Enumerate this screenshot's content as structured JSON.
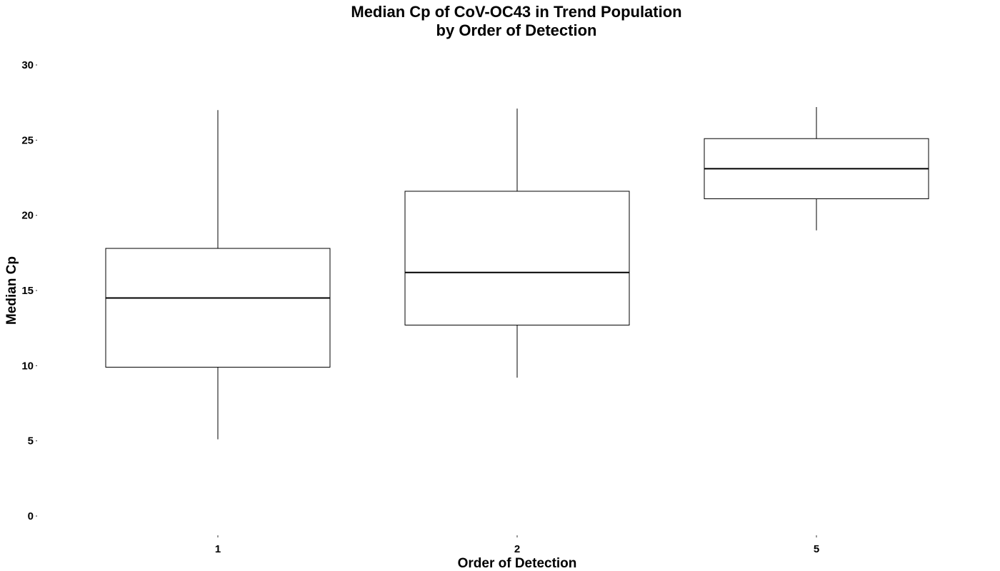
{
  "chart_data": {
    "type": "boxplot",
    "title": [
      "Median Cp of CoV-OC43 in Trend Population",
      "by Order of Detection"
    ],
    "xlabel": "Order of Detection",
    "ylabel": "Median Cp",
    "ylim": [
      0,
      30
    ],
    "yticks": [
      0,
      5,
      10,
      15,
      20,
      25,
      30
    ],
    "categories": [
      "1",
      "2",
      "5"
    ],
    "boxes": [
      {
        "category": "1",
        "whisker_low": 5.1,
        "q1": 9.9,
        "median": 14.5,
        "q3": 17.8,
        "whisker_high": 27.0
      },
      {
        "category": "2",
        "whisker_low": 9.2,
        "q1": 12.7,
        "median": 16.2,
        "q3": 21.6,
        "whisker_high": 27.1
      },
      {
        "category": "5",
        "whisker_low": 19.0,
        "q1": 21.1,
        "median": 23.1,
        "q3": 25.1,
        "whisker_high": 27.2
      }
    ],
    "grid": false,
    "colors": {
      "box_fill": "#ffffff",
      "box_stroke": "#000000",
      "median_stroke": "#000000"
    }
  }
}
